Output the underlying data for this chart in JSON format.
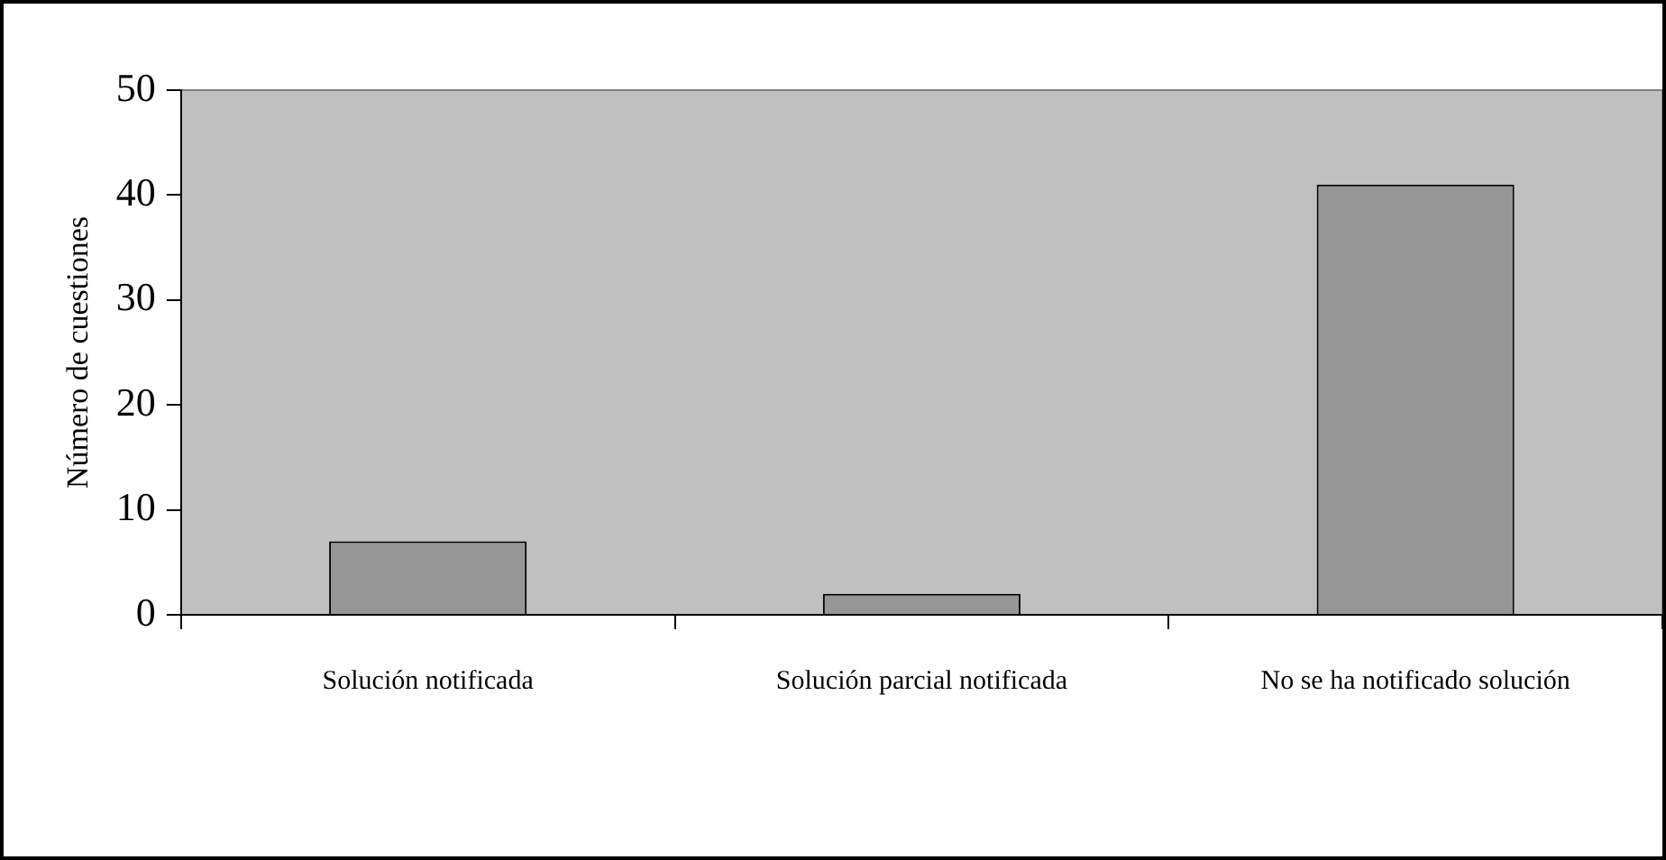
{
  "chart_data": {
    "type": "bar",
    "ylabel": "Número de cuestiones",
    "categories": [
      "Solución notificada",
      "Solución parcial notificada",
      "No se ha notificado solución"
    ],
    "values": [
      7,
      2,
      41
    ],
    "color": "#969696",
    "ylim": [
      0,
      50
    ],
    "yticks": [
      0,
      10,
      20,
      30,
      40,
      50
    ],
    "grid": false,
    "legend": false
  }
}
